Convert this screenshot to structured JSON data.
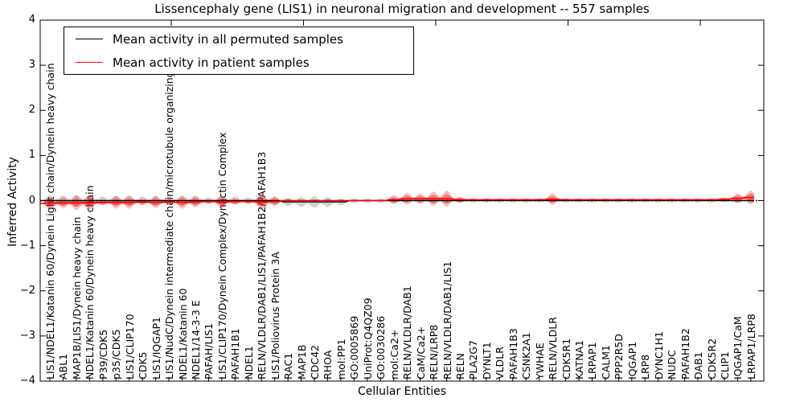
{
  "chart_data": {
    "type": "line",
    "title": "Lissencephaly gene (LIS1) in neuronal migration and development -- 557 samples",
    "xlabel": "Cellular Entities",
    "ylabel": "Inferred Activity",
    "ylim": [
      -4,
      4
    ],
    "ytick_labels": [
      "4",
      "3",
      "2",
      "1",
      "0",
      "−1",
      "−2",
      "−3",
      "−4"
    ],
    "ytick_values": [
      4,
      3,
      2,
      1,
      0,
      -1,
      -2,
      -3,
      -4
    ],
    "grid": false,
    "legend_position": "upper left",
    "legend": [
      {
        "label": "Mean activity in all permuted samples",
        "color": "#000000"
      },
      {
        "label": "Mean activity in patient samples",
        "color": "#ff0000"
      }
    ],
    "zero_reference_line": 0,
    "categories": [
      "LIS1/NDEL1/Katanin 60/Dynein Light chain/Dynein heavy chain",
      "ABL1",
      "MAP1B/LIS1/Dynein heavy chain",
      "NDEL1/Katanin 60/Dynein heavy chain",
      "P39/CDK5",
      "p35/CDK5",
      "LIS1/CLIP170",
      "CDK5",
      "LIS1/IQGAP1",
      "LIS1/NudC/Dynein intermediate chain/microtubule organizing center",
      "NDEL1/Katanin 60",
      "NDEL1/14-3-3 E",
      "PAFAH/LIS1",
      "LIS1/CLIP170/Dynein Complex/Dynactin Complex",
      "PAFAH1B1",
      "NDEL1",
      "RELN/VLDLR/DAB1/LIS1/PAFAH1B2/PAFAH1B3",
      "LIS1/Poliovirus Protein 3A",
      "RAC1",
      "MAP1B",
      "CDC42",
      "RHOA",
      "mol:PP1",
      "GO:0005869",
      "UniProt:Q4QZ09",
      "GO:0030286",
      "mol:Ca2+",
      "RELN/VLDLR/DAB1",
      "CaM/Ca2+",
      "RELN/LRP8",
      "RELN/VLDLR/DAB1/LIS1",
      "RELN",
      "PLA2G7",
      "DYNLT1",
      "VLDLR",
      "PAFAH1B3",
      "CSNK2A1",
      "YWHAE",
      "RELN/VLDLR",
      "CDK5R1",
      "KATNA1",
      "LRPAP1",
      "CALM1",
      "PPP2R5D",
      "IQGAP1",
      "LRP8",
      "DYNC1H1",
      "NUDC",
      "PAFAH1B2",
      "DAB1",
      "CDK5R2",
      "CLIP1",
      "IQGAP1/CaM",
      "LRPAP1/LRP8"
    ],
    "series": [
      {
        "name": "Mean activity in all permuted samples",
        "color": "#000000",
        "band_fill": "rgba(120,120,120,0.35)",
        "mean": [
          0,
          0,
          0,
          0,
          0,
          0,
          0,
          0,
          0,
          0,
          0,
          0,
          0,
          0,
          0,
          0,
          0,
          0,
          -0.03,
          -0.03,
          -0.03,
          -0.03,
          -0.03,
          0,
          0,
          0,
          0,
          0,
          0,
          0,
          0,
          0,
          0,
          0,
          0,
          0,
          0,
          0,
          0,
          0,
          0,
          0,
          0,
          0,
          0,
          0,
          0,
          0,
          0,
          0,
          0,
          0,
          0,
          0
        ],
        "halfwidth": [
          0.11,
          0.11,
          0.13,
          0.13,
          0.09,
          0.11,
          0.11,
          0.09,
          0.11,
          0.09,
          0.11,
          0.11,
          0.07,
          0.11,
          0.09,
          0.07,
          0.13,
          0.09,
          0.09,
          0.11,
          0.13,
          0.11,
          0.07,
          0.05,
          0.05,
          0.05,
          0.05,
          0.05,
          0.05,
          0.07,
          0.07,
          0.05,
          0.04,
          0.04,
          0.04,
          0.04,
          0.04,
          0.04,
          0.04,
          0.04,
          0.04,
          0.04,
          0.04,
          0.04,
          0.04,
          0.04,
          0.04,
          0.04,
          0.04,
          0.04,
          0.04,
          0.04,
          0.05,
          0.05
        ]
      },
      {
        "name": "Mean activity in patient samples",
        "color": "#ff0000",
        "band_fill": "rgba(255,30,30,0.30)",
        "band_fill_inner": "rgba(230,0,0,0.35)",
        "mean": [
          -0.06,
          -0.05,
          -0.05,
          -0.05,
          -0.04,
          -0.04,
          -0.04,
          -0.03,
          -0.04,
          -0.03,
          -0.04,
          -0.03,
          -0.02,
          -0.03,
          -0.02,
          -0.02,
          -0.03,
          -0.02,
          0,
          0,
          0,
          0,
          0,
          0,
          0,
          0,
          0.02,
          0.04,
          0.04,
          0.04,
          0.04,
          0.02,
          0.02,
          0.02,
          0.02,
          0.02,
          0.02,
          0.02,
          0.03,
          0.02,
          0.02,
          0.02,
          0.02,
          0.02,
          0.02,
          0.02,
          0.02,
          0.02,
          0.02,
          0.02,
          0.02,
          0.03,
          0.05,
          0.07
        ],
        "halfwidth": [
          0.14,
          0.12,
          0.16,
          0.16,
          0.07,
          0.14,
          0.14,
          0.07,
          0.13,
          0.07,
          0.14,
          0.12,
          0.05,
          0.14,
          0.07,
          0.05,
          0.18,
          0.1,
          0.04,
          0.03,
          0.03,
          0.03,
          0.03,
          0.02,
          0.02,
          0.02,
          0.1,
          0.13,
          0.11,
          0.16,
          0.18,
          0.07,
          0.03,
          0.03,
          0.03,
          0.03,
          0.03,
          0.03,
          0.13,
          0.03,
          0.03,
          0.03,
          0.03,
          0.03,
          0.03,
          0.03,
          0.03,
          0.03,
          0.03,
          0.03,
          0.03,
          0.04,
          0.11,
          0.15
        ]
      }
    ]
  }
}
